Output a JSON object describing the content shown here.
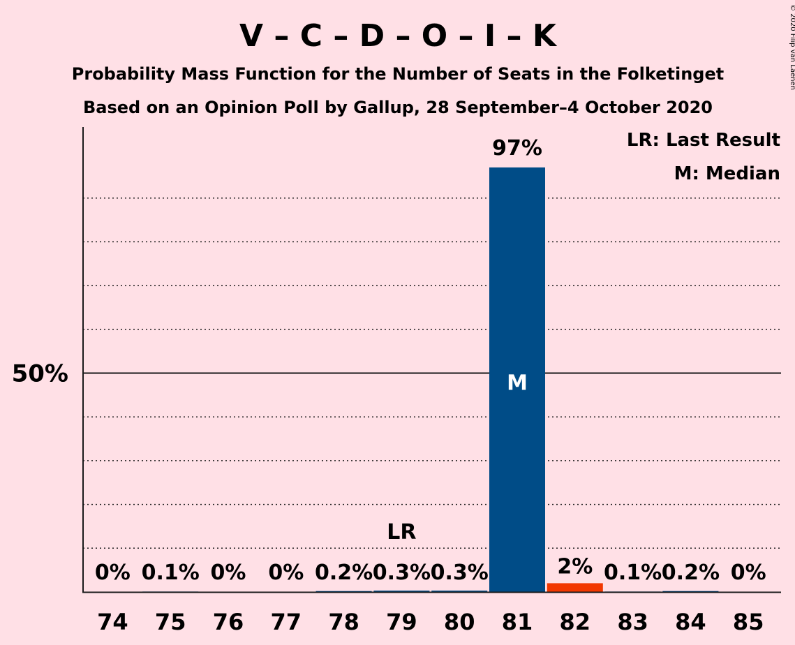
{
  "header": {
    "title": "V – C – D – O – I – K",
    "subtitle1": "Probability Mass Function for the Number of Seats in the Folketinget",
    "subtitle2": "Based on an Opinion Poll by Gallup, 28 September–4 October 2020"
  },
  "legend": {
    "last_result": "LR: Last Result",
    "median": "M: Median"
  },
  "copyright": "© 2020 Filip van Laenen",
  "colors": {
    "background": "#FFE0E6",
    "bar": "#004C87",
    "highlight_bar": "#F23800",
    "text": "#1a1a1a"
  },
  "chart_data": {
    "type": "bar",
    "categories": [
      "74",
      "75",
      "76",
      "77",
      "78",
      "79",
      "80",
      "81",
      "82",
      "83",
      "84",
      "85"
    ],
    "values": [
      0,
      0.1,
      0,
      0,
      0.2,
      0.3,
      0.3,
      97,
      2,
      0.1,
      0.2,
      0
    ],
    "labels": [
      "0%",
      "0.1%",
      "0%",
      "0%",
      "0.2%",
      "0.3%",
      "0.3%",
      "97%",
      "2%",
      "0.1%",
      "0.2%",
      "0%"
    ],
    "ylim": [
      0,
      105
    ],
    "yticks": [
      {
        "value": 50,
        "label": "50%"
      }
    ],
    "gridlines": [
      10,
      20,
      30,
      40,
      60,
      70,
      80,
      90
    ],
    "last_result": {
      "category": "79",
      "label": "LR"
    },
    "median": {
      "category": "81",
      "label": "M"
    },
    "highlight_category": "82",
    "legend_position": "top-right"
  }
}
